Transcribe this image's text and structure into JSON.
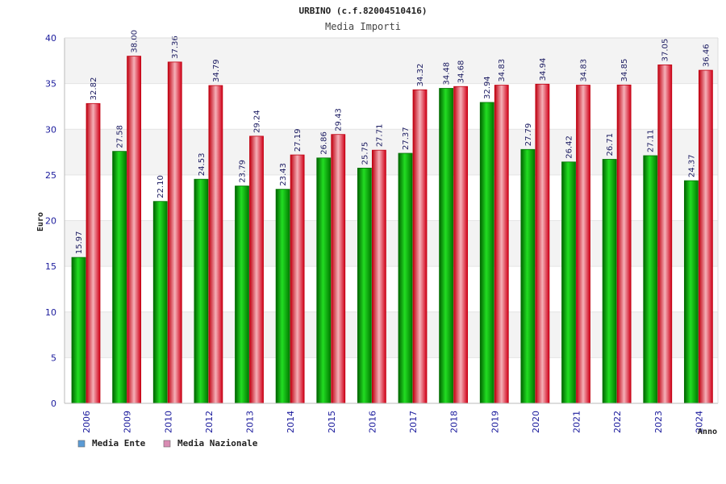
{
  "chart_data": {
    "type": "bar",
    "title": "URBINO (c.f.82004510416)",
    "subtitle": "Media Importi",
    "xlabel": "Anno",
    "ylabel": "Euro",
    "ylim": [
      0,
      40
    ],
    "yticks": [
      "0",
      "5",
      "10",
      "15",
      "20",
      "25",
      "30",
      "35",
      "40"
    ],
    "categories": [
      "2006",
      "2009",
      "2010",
      "2012",
      "2013",
      "2014",
      "2015",
      "2016",
      "2017",
      "2018",
      "2019",
      "2020",
      "2021",
      "2022",
      "2023",
      "2024"
    ],
    "series": [
      {
        "name": "Media Ente",
        "color": "#00b000",
        "values": [
          15.97,
          27.58,
          22.1,
          24.53,
          23.79,
          23.43,
          26.86,
          25.75,
          27.37,
          34.48,
          32.94,
          27.79,
          26.42,
          26.71,
          27.11,
          24.37
        ],
        "labels": [
          "15.97",
          "27.58",
          "22.10",
          "24.53",
          "23.79",
          "23.43",
          "26.86",
          "25.75",
          "27.37",
          "34.48",
          "32.94",
          "27.79",
          "26.42",
          "26.71",
          "27.11",
          "24.37"
        ]
      },
      {
        "name": "Media Nazionale",
        "color": "#e81020",
        "values": [
          32.82,
          38.0,
          37.36,
          34.79,
          29.24,
          27.19,
          29.43,
          27.71,
          34.32,
          34.68,
          34.83,
          34.94,
          34.83,
          34.85,
          37.05,
          36.46
        ],
        "labels": [
          "32.82",
          "38.00",
          "37.36",
          "34.79",
          "29.24",
          "27.19",
          "29.43",
          "27.71",
          "34.32",
          "34.68",
          "34.83",
          "34.94",
          "34.83",
          "34.85",
          "37.05",
          "36.46"
        ]
      }
    ],
    "grid": true,
    "legend_position": "bottom-left",
    "legend": [
      {
        "label": "Media Ente",
        "color": "#5b9bd5"
      },
      {
        "label": "Media Nazionale",
        "color": "#d98cb3"
      }
    ]
  }
}
